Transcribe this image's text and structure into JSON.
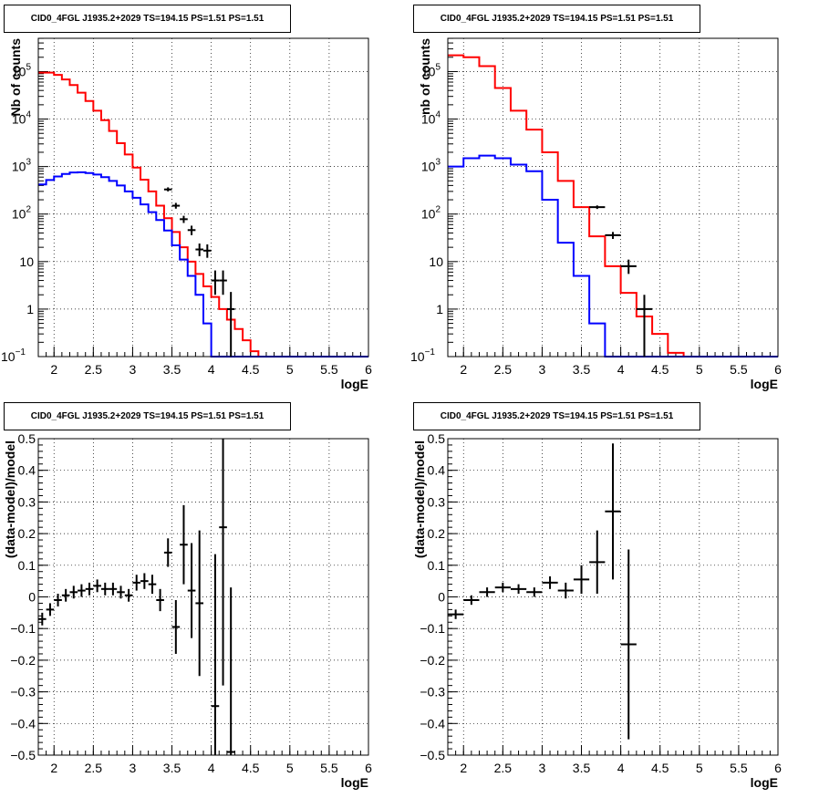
{
  "chart_data": [
    {
      "type": "step-histogram-log",
      "title": "CID0_4FGL J1935.2+2029 TS=194.15 PS=1.51 PS=1.51",
      "xlabel": "logE",
      "ylabel": "Nb of counts",
      "xlim": [
        1.8,
        6
      ],
      "ylim_log10": [
        -1,
        5.7
      ],
      "log_y": true,
      "grid": true,
      "x_ticks": [
        "2",
        "2.5",
        "3",
        "3.5",
        "4",
        "4.5",
        "5",
        "5.5",
        "6"
      ],
      "y_tick_labels": [
        {
          "value": 0.1,
          "label": "10",
          "sup": "−1"
        },
        {
          "value": 1,
          "label": "1",
          "sup": ""
        },
        {
          "value": 10,
          "label": "10",
          "sup": ""
        },
        {
          "value": 100,
          "label": "10",
          "sup": "2"
        },
        {
          "value": 1000,
          "label": "10",
          "sup": "3"
        },
        {
          "value": 10000,
          "label": "10",
          "sup": "4"
        },
        {
          "value": 100000,
          "label": "10",
          "sup": "5"
        }
      ],
      "bin_edges": [
        1.8,
        1.9,
        2.0,
        2.1,
        2.2,
        2.3,
        2.4,
        2.5,
        2.6,
        2.7,
        2.8,
        2.9,
        3.0,
        3.1,
        3.2,
        3.3,
        3.4,
        3.5,
        3.6,
        3.7,
        3.8,
        3.9,
        4.0,
        4.1,
        4.2,
        4.3,
        4.4,
        4.5,
        4.6,
        4.7,
        4.8,
        4.9,
        5.0,
        5.1,
        5.2,
        5.3,
        5.4,
        5.5,
        5.6,
        5.7,
        5.8,
        5.9,
        6.0
      ],
      "series": [
        {
          "values": [
            95000,
            95000,
            85000,
            68000,
            52000,
            36000,
            24000,
            15000,
            9500,
            5600,
            3100,
            1800,
            950,
            530,
            300,
            150,
            82,
            42,
            20,
            10,
            5.5,
            3,
            1.8,
            1.0,
            0.6,
            0.38,
            0.22,
            0.13,
            0,
            0,
            0,
            0,
            0,
            0,
            0,
            0,
            0,
            0,
            0,
            0,
            0,
            0
          ],
          "color": "#ff0000"
        },
        {
          "values": [
            420,
            520,
            620,
            700,
            750,
            760,
            730,
            680,
            600,
            500,
            400,
            300,
            220,
            160,
            110,
            75,
            45,
            22,
            11,
            5,
            2,
            0.5,
            0.1,
            0,
            0,
            0,
            0,
            0,
            0,
            0,
            0,
            0,
            0,
            0,
            0,
            0,
            0,
            0,
            0,
            0,
            0,
            0
          ],
          "color": "#0000ff"
        }
      ],
      "data_points": [
        {
          "x": 3.45,
          "y": 330,
          "ylo": 300,
          "yhi": 365
        },
        {
          "x": 3.55,
          "y": 150,
          "ylo": 130,
          "yhi": 172
        },
        {
          "x": 3.65,
          "y": 78,
          "ylo": 65,
          "yhi": 92
        },
        {
          "x": 3.75,
          "y": 46,
          "ylo": 36,
          "yhi": 57
        },
        {
          "x": 3.85,
          "y": 18,
          "ylo": 13,
          "yhi": 24
        },
        {
          "x": 3.95,
          "y": 17,
          "ylo": 12,
          "yhi": 23
        },
        {
          "x": 4.05,
          "y": 4,
          "ylo": 2,
          "yhi": 6.5
        },
        {
          "x": 4.15,
          "y": 4,
          "ylo": 2,
          "yhi": 6.5
        },
        {
          "x": 4.25,
          "y": 1,
          "ylo": 0.1,
          "yhi": 2.3
        }
      ]
    },
    {
      "type": "step-histogram-log",
      "title": "CID0_4FGL J1935.2+2029 TS=194.15 PS=1.51 PS=1.51",
      "xlabel": "logE",
      "ylabel": "nb of counts",
      "xlim": [
        1.8,
        6
      ],
      "ylim_log10": [
        -1,
        5.7
      ],
      "log_y": true,
      "grid": true,
      "x_ticks": [
        "2",
        "2.5",
        "3",
        "3.5",
        "4",
        "4.5",
        "5",
        "5.5",
        "6"
      ],
      "y_tick_labels": [
        {
          "value": 0.1,
          "label": "10",
          "sup": "−1"
        },
        {
          "value": 1,
          "label": "1",
          "sup": ""
        },
        {
          "value": 10,
          "label": "10",
          "sup": ""
        },
        {
          "value": 100,
          "label": "10",
          "sup": "2"
        },
        {
          "value": 1000,
          "label": "10",
          "sup": "3"
        },
        {
          "value": 10000,
          "label": "10",
          "sup": "4"
        },
        {
          "value": 100000,
          "label": "10",
          "sup": "5"
        }
      ],
      "bin_edges": [
        1.8,
        2.0,
        2.2,
        2.4,
        2.6,
        2.8,
        3.0,
        3.2,
        3.4,
        3.6,
        3.8,
        4.0,
        4.2,
        4.4,
        4.6,
        4.8,
        5.0,
        5.2,
        5.4,
        5.6,
        5.8,
        6.0
      ],
      "series": [
        {
          "values": [
            220000,
            200000,
            130000,
            45000,
            15000,
            6000,
            2000,
            500,
            140,
            34,
            8,
            2.2,
            0.7,
            0.3,
            0.12,
            0.1,
            0,
            0,
            0,
            0,
            0
          ],
          "color": "#ff0000"
        },
        {
          "values": [
            1000,
            1500,
            1700,
            1500,
            1100,
            800,
            200,
            25,
            5,
            0.5,
            0.1,
            0,
            0,
            0,
            0,
            0,
            0,
            0,
            0,
            0,
            0
          ],
          "color": "#0000ff"
        }
      ],
      "data_points": [
        {
          "x": 3.7,
          "y": 140,
          "ylo": 128,
          "yhi": 152
        },
        {
          "x": 3.9,
          "y": 36,
          "ylo": 30,
          "yhi": 42
        },
        {
          "x": 4.1,
          "y": 8,
          "ylo": 5.5,
          "yhi": 11
        },
        {
          "x": 4.3,
          "y": 1,
          "ylo": 0.1,
          "yhi": 2
        }
      ]
    },
    {
      "type": "scatter-errorbar",
      "title": "CID0_4FGL J1935.2+2029 TS=194.15 PS=1.51 PS=1.51",
      "xlabel": "logE",
      "ylabel": "(data-model)/model",
      "xlim": [
        1.8,
        6
      ],
      "ylim": [
        -0.5,
        0.5
      ],
      "grid": true,
      "x_ticks": [
        "2",
        "2.5",
        "3",
        "3.5",
        "4",
        "4.5",
        "5",
        "5.5",
        "6"
      ],
      "y_ticks": [
        "−0.5",
        "−0.4",
        "−0.3",
        "−0.2",
        "−0.1",
        "0",
        "0.1",
        "0.2",
        "0.3",
        "0.4",
        "0.5"
      ],
      "bin_width": 0.1,
      "points": [
        {
          "x": 1.85,
          "y": -0.07,
          "err": 0.02
        },
        {
          "x": 1.95,
          "y": -0.04,
          "err": 0.02
        },
        {
          "x": 2.05,
          "y": -0.01,
          "err": 0.02
        },
        {
          "x": 2.15,
          "y": 0.005,
          "err": 0.02
        },
        {
          "x": 2.25,
          "y": 0.015,
          "err": 0.02
        },
        {
          "x": 2.35,
          "y": 0.02,
          "err": 0.02
        },
        {
          "x": 2.45,
          "y": 0.025,
          "err": 0.02
        },
        {
          "x": 2.55,
          "y": 0.035,
          "err": 0.02
        },
        {
          "x": 2.65,
          "y": 0.025,
          "err": 0.02
        },
        {
          "x": 2.75,
          "y": 0.025,
          "err": 0.02
        },
        {
          "x": 2.85,
          "y": 0.015,
          "err": 0.02
        },
        {
          "x": 2.95,
          "y": 0.005,
          "err": 0.02
        },
        {
          "x": 3.05,
          "y": 0.045,
          "err": 0.025
        },
        {
          "x": 3.15,
          "y": 0.05,
          "err": 0.025
        },
        {
          "x": 3.25,
          "y": 0.04,
          "err": 0.03
        },
        {
          "x": 3.35,
          "y": -0.01,
          "err": 0.035
        },
        {
          "x": 3.45,
          "y": 0.14,
          "err": 0.045
        },
        {
          "x": 3.55,
          "y": -0.095,
          "err": 0.085
        },
        {
          "x": 3.65,
          "y": 0.165,
          "err": 0.125
        },
        {
          "x": 3.75,
          "y": 0.02,
          "err": 0.15
        },
        {
          "x": 3.85,
          "y": -0.02,
          "err": 0.23
        },
        {
          "x": 4.05,
          "y": -0.345,
          "err": 0.48
        },
        {
          "x": 4.15,
          "y": 0.22,
          "err": 0.5
        },
        {
          "x": 4.25,
          "y": -0.49,
          "err": 0.52
        }
      ]
    },
    {
      "type": "scatter-errorbar",
      "title": "CID0_4FGL J1935.2+2029 TS=194.15 PS=1.51 PS=1.51",
      "xlabel": "logE",
      "ylabel": "(data-model)/model",
      "xlim": [
        1.8,
        6
      ],
      "ylim": [
        -0.5,
        0.5
      ],
      "grid": true,
      "x_ticks": [
        "2",
        "2.5",
        "3",
        "3.5",
        "4",
        "4.5",
        "5",
        "5.5",
        "6"
      ],
      "y_ticks": [
        "−0.5",
        "−0.4",
        "−0.3",
        "−0.2",
        "−0.1",
        "0",
        "0.1",
        "0.2",
        "0.3",
        "0.4",
        "0.5"
      ],
      "bin_width": 0.2,
      "points": [
        {
          "x": 1.9,
          "y": -0.055,
          "err": 0.015
        },
        {
          "x": 2.1,
          "y": -0.01,
          "err": 0.015
        },
        {
          "x": 2.3,
          "y": 0.015,
          "err": 0.015
        },
        {
          "x": 2.5,
          "y": 0.03,
          "err": 0.015
        },
        {
          "x": 2.7,
          "y": 0.025,
          "err": 0.015
        },
        {
          "x": 2.9,
          "y": 0.015,
          "err": 0.015
        },
        {
          "x": 3.1,
          "y": 0.045,
          "err": 0.02
        },
        {
          "x": 3.3,
          "y": 0.02,
          "err": 0.025
        },
        {
          "x": 3.5,
          "y": 0.055,
          "err": 0.045
        },
        {
          "x": 3.7,
          "y": 0.11,
          "err": 0.1
        },
        {
          "x": 3.9,
          "y": 0.27,
          "err": 0.215
        },
        {
          "x": 4.1,
          "y": -0.15,
          "err": 0.3
        }
      ]
    }
  ]
}
